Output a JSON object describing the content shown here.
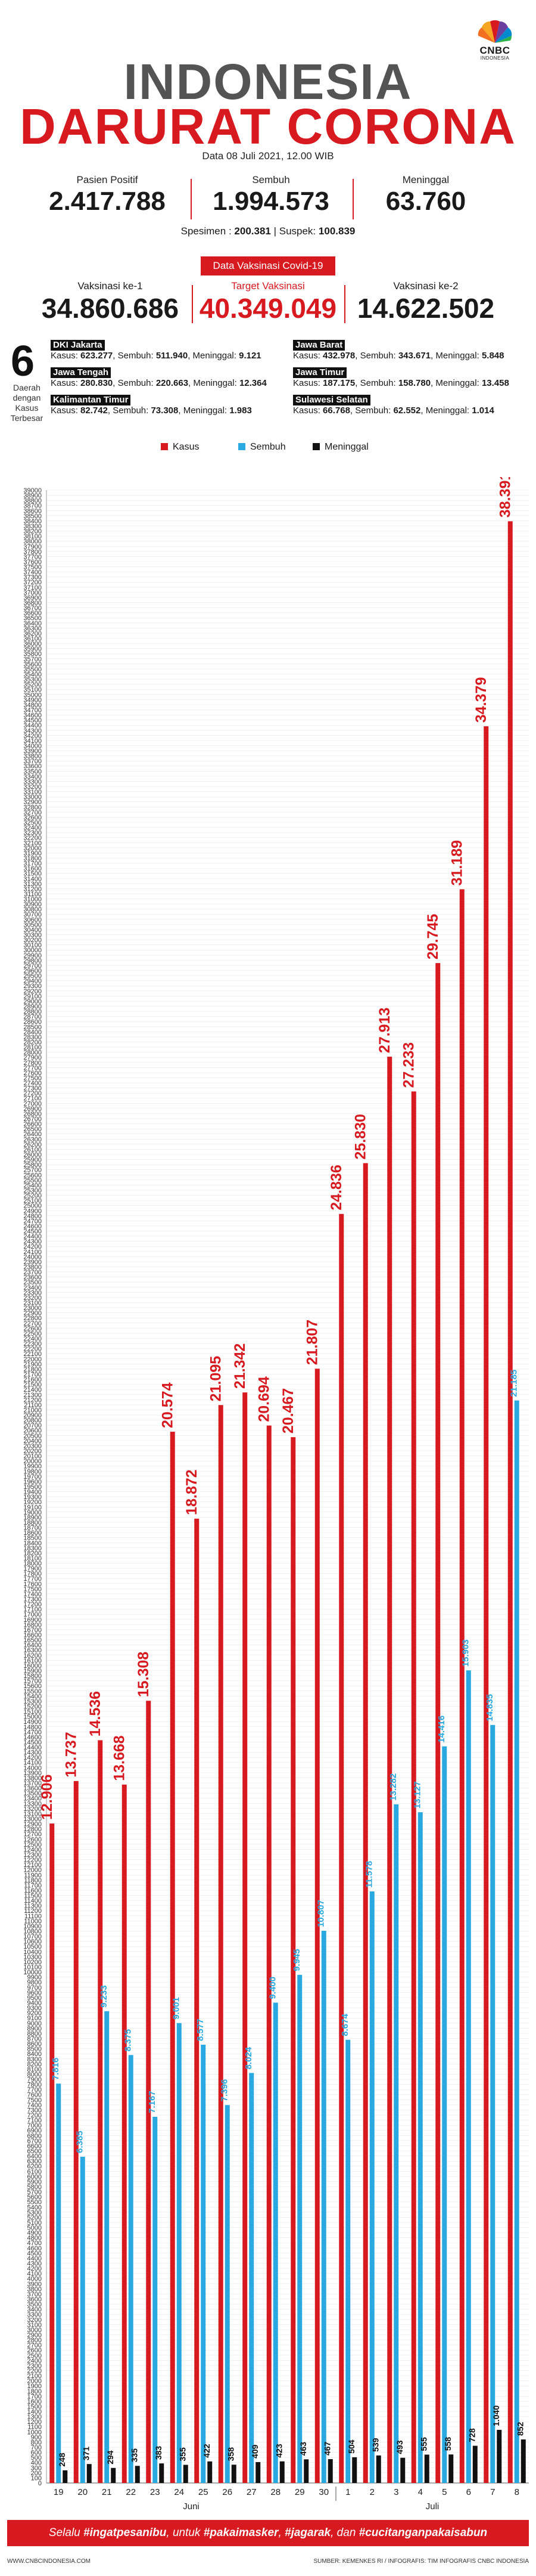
{
  "header": {
    "title_line1": "INDONESIA",
    "title_line2": "DARURAT CORONA",
    "date": "Data 08 Juli 2021, 12.00 WIB",
    "logo_text": "CNBC",
    "logo_sub": "INDONESIA"
  },
  "stats": {
    "positif_label": "Pasien Positif",
    "positif_value": "2.417.788",
    "sembuh_label": "Sembuh",
    "sembuh_value": "1.994.573",
    "meninggal_label": "Meninggal",
    "meninggal_value": "63.760"
  },
  "spesimen": {
    "spesimen_label": "Spesimen :",
    "spesimen_value": "200.381",
    "suspek_label": "Suspek:",
    "suspek_value": "100.839"
  },
  "vaksin": {
    "badge": "Data Vaksinasi Covid-19",
    "ke1_label": "Vaksinasi ke-1",
    "ke1_value": "34.860.686",
    "target_label": "Target Vaksinasi",
    "target_value": "40.349.049",
    "ke2_label": "Vaksinasi ke-2",
    "ke2_value": "14.622.502"
  },
  "top6": {
    "number": "6",
    "label": "Daerah dengan Kasus Terbesar",
    "regions": [
      {
        "name": "DKI Jakarta",
        "kasus_label": "Kasus:",
        "kasus": "623.277",
        "sembuh_label": "Sembuh:",
        "sembuh": "511.940",
        "meninggal_label": "Meninggal:",
        "meninggal": "9.121"
      },
      {
        "name": "Jawa Barat",
        "kasus_label": "Kasus:",
        "kasus": "432.978",
        "sembuh_label": "Sembuh:",
        "sembuh": "343.671",
        "meninggal_label": "Meninggal:",
        "meninggal": "5.848"
      },
      {
        "name": "Jawa Tengah",
        "kasus_label": "Kasus:",
        "kasus": "280.830",
        "sembuh_label": "Sembuh:",
        "sembuh": "220.663",
        "meninggal_label": "Meninggal:",
        "meninggal": "12.364"
      },
      {
        "name": "Jawa Timur",
        "kasus_label": "Kasus:",
        "kasus": "187.175",
        "sembuh_label": "Sembuh:",
        "sembuh": "158.780",
        "meninggal_label": "Meninggal:",
        "meninggal": "13.458"
      },
      {
        "name": "Kalimantan Timur",
        "kasus_label": "Kasus:",
        "kasus": "82.742",
        "sembuh_label": "Sembuh:",
        "sembuh": "73.308",
        "meninggal_label": "Meninggal:",
        "meninggal": "1.983"
      },
      {
        "name": "Sulawesi Selatan",
        "kasus_label": "Kasus:",
        "kasus": "66.768",
        "sembuh_label": "Sembuh:",
        "sembuh": "62.552",
        "meninggal_label": "Meninggal:",
        "meninggal": "1.014"
      }
    ]
  },
  "footer": {
    "pre": "Selalu ",
    "tag1": "#ingatpesanibu",
    "mid1": ", untuk ",
    "tag2": "#pakaimasker",
    "mid2": ", ",
    "tag3": "#jagarak",
    "mid3": ", dan ",
    "tag4": "#cucitanganpakaisabun",
    "website": "WWW.CNBCINDONESIA.COM",
    "source": "SUMBER: KEMENKES RI / INFOGRAFIS: TIM INFOGRAFIS CNBC INDONESIA"
  },
  "colors": {
    "kasus": "#d71920",
    "sembuh": "#29a9e0",
    "meninggal": "#111111",
    "accent": "#d71920"
  },
  "chart_data": {
    "type": "bar",
    "categories": [
      "19",
      "20",
      "21",
      "22",
      "23",
      "24",
      "25",
      "26",
      "27",
      "28",
      "29",
      "30",
      "1",
      "2",
      "3",
      "4",
      "5",
      "6",
      "7",
      "8"
    ],
    "month_groups": [
      {
        "label": "Juni",
        "from": 0,
        "to": 11
      },
      {
        "label": "Juli",
        "from": 12,
        "to": 19
      }
    ],
    "series": [
      {
        "name": "Kasus",
        "color": "#d71920",
        "values": [
          12906,
          13737,
          14536,
          13668,
          15308,
          20574,
          18872,
          21095,
          21342,
          20694,
          20467,
          21807,
          24836,
          25830,
          27913,
          27233,
          29745,
          31189,
          34379,
          38391
        ]
      },
      {
        "name": "Sembuh",
        "color": "#29a9e0",
        "values": [
          7816,
          6385,
          9233,
          8375,
          7167,
          9001,
          8577,
          7396,
          8024,
          9400,
          9945,
          10807,
          8674,
          11578,
          13282,
          13127,
          14416,
          15903,
          14835,
          21185
        ]
      },
      {
        "name": "Meninggal",
        "color": "#111111",
        "values": [
          248,
          371,
          294,
          335,
          383,
          355,
          422,
          358,
          409,
          423,
          463,
          467,
          504,
          539,
          493,
          555,
          558,
          728,
          1040,
          852
        ]
      }
    ],
    "labels": {
      "Kasus": [
        "12.906",
        "13.737",
        "14.536",
        "13.668",
        "15.308",
        "20.574",
        "18.872",
        "21.095",
        "21.342",
        "20.694",
        "20.467",
        "21.807",
        "24.836",
        "25.830",
        "27.913",
        "27.233",
        "29.745",
        "31.189",
        "34.379",
        "38.391"
      ],
      "Sembuh": [
        "7.816",
        "6.385",
        "9.233",
        "8.375",
        "7.167",
        "9.001",
        "8.577",
        "7.396",
        "8.024",
        "9.400",
        "9.945",
        "10.807",
        "8.674",
        "11.578",
        "13.282",
        "13.127",
        "14.416",
        "15.903",
        "14.835",
        "21.185"
      ],
      "Meninggal": [
        "248",
        "371",
        "294",
        "335",
        "383",
        "355",
        "422",
        "358",
        "409",
        "423",
        "463",
        "467",
        "504",
        "539",
        "493",
        "555",
        "558",
        "728",
        "1.040",
        "852"
      ]
    },
    "ylim": [
      0,
      39000
    ],
    "ytick_step": 100,
    "grid": true,
    "legend": "top"
  }
}
